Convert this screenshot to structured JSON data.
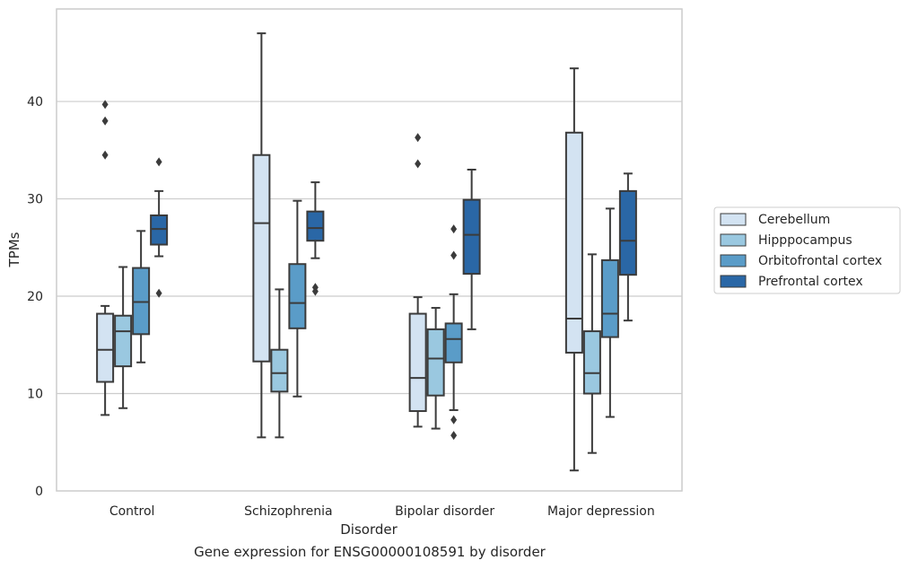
{
  "chart_data": {
    "type": "box",
    "caption": "Gene expression for ENSG00000108591 by disorder",
    "xlabel": "Disorder",
    "ylabel": "TPMs",
    "ylim": [
      0,
      49.5
    ],
    "yticks": [
      0,
      10,
      20,
      30,
      40
    ],
    "grid": "horizontal",
    "legend_position": "right",
    "categories": [
      "Control",
      "Schizophrenia",
      "Bipolar disorder",
      "Major depression"
    ],
    "series": [
      {
        "name": "Cerebellum",
        "color": "#d3e3f2",
        "boxes": [
          {
            "whisker_low": 7.8,
            "q1": 11.2,
            "median": 14.5,
            "q3": 18.2,
            "whisker_high": 19.0,
            "outliers": [
              34.5,
              38.0,
              39.7
            ]
          },
          {
            "whisker_low": 5.5,
            "q1": 13.3,
            "median": 27.5,
            "q3": 34.5,
            "whisker_high": 47.0,
            "outliers": []
          },
          {
            "whisker_low": 6.6,
            "q1": 8.2,
            "median": 11.6,
            "q3": 18.2,
            "whisker_high": 19.9,
            "outliers": [
              33.6,
              36.3
            ]
          },
          {
            "whisker_low": 2.1,
            "q1": 14.2,
            "median": 17.7,
            "q3": 36.8,
            "whisker_high": 43.4,
            "outliers": []
          }
        ]
      },
      {
        "name": "Hipppocampus",
        "color": "#9ac8e0",
        "boxes": [
          {
            "whisker_low": 8.5,
            "q1": 12.8,
            "median": 16.4,
            "q3": 18.0,
            "whisker_high": 23.0,
            "outliers": []
          },
          {
            "whisker_low": 5.5,
            "q1": 10.2,
            "median": 12.1,
            "q3": 14.5,
            "whisker_high": 20.7,
            "outliers": []
          },
          {
            "whisker_low": 6.4,
            "q1": 9.8,
            "median": 13.6,
            "q3": 16.6,
            "whisker_high": 18.8,
            "outliers": []
          },
          {
            "whisker_low": 3.9,
            "q1": 10.0,
            "median": 12.1,
            "q3": 16.4,
            "whisker_high": 24.3,
            "outliers": []
          }
        ]
      },
      {
        "name": "Orbitofrontal cortex",
        "color": "#5a9cc8",
        "boxes": [
          {
            "whisker_low": 13.2,
            "q1": 16.1,
            "median": 19.4,
            "q3": 22.9,
            "whisker_high": 26.7,
            "outliers": []
          },
          {
            "whisker_low": 9.7,
            "q1": 16.7,
            "median": 19.3,
            "q3": 23.3,
            "whisker_high": 29.8,
            "outliers": []
          },
          {
            "whisker_low": 8.3,
            "q1": 13.2,
            "median": 15.6,
            "q3": 17.2,
            "whisker_high": 20.2,
            "outliers": [
              5.7,
              7.3,
              24.2,
              26.9
            ]
          },
          {
            "whisker_low": 7.6,
            "q1": 15.8,
            "median": 18.2,
            "q3": 23.7,
            "whisker_high": 29.0,
            "outliers": []
          }
        ]
      },
      {
        "name": "Prefrontal cortex",
        "color": "#2a67a6",
        "boxes": [
          {
            "whisker_low": 24.1,
            "q1": 25.3,
            "median": 26.9,
            "q3": 28.3,
            "whisker_high": 30.8,
            "outliers": [
              20.3,
              33.8
            ]
          },
          {
            "whisker_low": 23.9,
            "q1": 25.7,
            "median": 27.0,
            "q3": 28.7,
            "whisker_high": 31.7,
            "outliers": [
              20.5,
              20.9
            ]
          },
          {
            "whisker_low": 16.6,
            "q1": 22.3,
            "median": 26.3,
            "q3": 29.9,
            "whisker_high": 33.0,
            "outliers": []
          },
          {
            "whisker_low": 17.5,
            "q1": 22.2,
            "median": 25.7,
            "q3": 30.8,
            "whisker_high": 32.6,
            "outliers": []
          }
        ]
      }
    ]
  }
}
